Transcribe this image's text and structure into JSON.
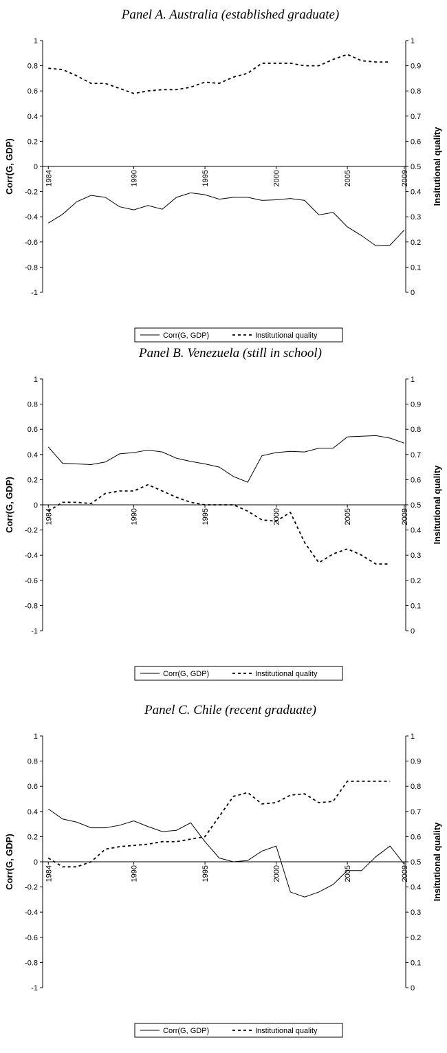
{
  "chart_data": [
    {
      "type": "line",
      "title": "Panel A. Australia (established graduate)",
      "y_label": "Corr(G, GDP)",
      "y2_label": "Insitutional quality",
      "x": [
        1984,
        1985,
        1986,
        1987,
        1988,
        1989,
        1990,
        1991,
        1992,
        1993,
        1994,
        1995,
        1996,
        1997,
        1998,
        1999,
        2000,
        2001,
        2002,
        2003,
        2004,
        2005,
        2006,
        2007,
        2008,
        2009
      ],
      "xlim": [
        1983.6,
        2009.1
      ],
      "xticks": [
        1984,
        1990,
        1995,
        2000,
        2005,
        2009
      ],
      "ylim": [
        -1,
        1
      ],
      "yticks": [
        -1,
        -0.8,
        -0.6,
        -0.4,
        -0.2,
        0,
        0.2,
        0.4,
        0.6,
        0.8,
        1
      ],
      "y2lim": [
        0,
        1
      ],
      "y2ticks": [
        0,
        0.1,
        0.2,
        0.3,
        0.4,
        0.5,
        0.6,
        0.7,
        0.8,
        0.9,
        1
      ],
      "series": [
        {
          "name": "Corr(G, GDP)",
          "color": "#000000",
          "dash": "solid",
          "values": [
            -0.45,
            -0.38,
            -0.28,
            -0.23,
            -0.245,
            -0.32,
            -0.345,
            -0.31,
            -0.34,
            -0.245,
            -0.21,
            -0.225,
            -0.26,
            -0.245,
            -0.245,
            -0.27,
            -0.265,
            -0.255,
            -0.27,
            -0.385,
            -0.365,
            -0.48,
            -0.55,
            -0.63,
            -0.625,
            -0.505
          ]
        },
        {
          "name": "Institutional quality",
          "color": "#000000",
          "dash": "dashed",
          "axis": "y2",
          "values": [
            0.89,
            0.885,
            0.86,
            0.83,
            0.83,
            0.81,
            0.79,
            0.8,
            0.805,
            0.805,
            0.815,
            0.835,
            0.83,
            0.855,
            0.87,
            0.91,
            0.91,
            0.91,
            0.9,
            0.9,
            0.925,
            0.945,
            0.92,
            0.915,
            0.915,
            null
          ]
        }
      ]
    },
    {
      "type": "line",
      "title": "Panel B. Venezuela (still in school)",
      "y_label": "Corr(G, GDP)",
      "y2_label": "Insitutional quality",
      "x": [
        1984,
        1985,
        1986,
        1987,
        1988,
        1989,
        1990,
        1991,
        1992,
        1993,
        1994,
        1995,
        1996,
        1997,
        1998,
        1999,
        2000,
        2001,
        2002,
        2003,
        2004,
        2005,
        2006,
        2007,
        2008,
        2009
      ],
      "xlim": [
        1983.6,
        2009.1
      ],
      "xticks": [
        1984,
        1990,
        1995,
        2000,
        2005,
        2009
      ],
      "ylim": [
        -1,
        1
      ],
      "yticks": [
        -1,
        -0.8,
        -0.6,
        -0.4,
        -0.2,
        0,
        0.2,
        0.4,
        0.6,
        0.8,
        1
      ],
      "y2lim": [
        0,
        1
      ],
      "y2ticks": [
        0,
        0.1,
        0.2,
        0.3,
        0.4,
        0.5,
        0.6,
        0.7,
        0.8,
        0.9,
        1
      ],
      "series": [
        {
          "name": "Corr(G, GDP)",
          "color": "#000000",
          "dash": "solid",
          "values": [
            0.46,
            0.33,
            0.325,
            0.32,
            0.34,
            0.405,
            0.415,
            0.435,
            0.42,
            0.37,
            0.345,
            0.325,
            0.3,
            0.225,
            0.18,
            0.39,
            0.415,
            0.425,
            0.42,
            0.45,
            0.45,
            0.54,
            0.545,
            0.55,
            0.53,
            0.49
          ]
        },
        {
          "name": "Institutional quality",
          "color": "#000000",
          "dash": "dashed",
          "axis": "y2",
          "values": [
            0.475,
            0.51,
            0.51,
            0.505,
            0.545,
            0.555,
            0.555,
            0.58,
            0.555,
            0.53,
            0.51,
            0.5,
            0.5,
            0.5,
            0.475,
            0.44,
            0.435,
            0.47,
            0.35,
            0.27,
            0.305,
            0.325,
            0.3,
            0.265,
            0.265,
            null
          ]
        }
      ]
    },
    {
      "type": "line",
      "title": "Panel C. Chile (recent graduate)",
      "y_label": "Corr(G, GDP)",
      "y2_label": "Insitutional quality",
      "x": [
        1984,
        1985,
        1986,
        1987,
        1988,
        1989,
        1990,
        1991,
        1992,
        1993,
        1994,
        1995,
        1996,
        1997,
        1998,
        1999,
        2000,
        2001,
        2002,
        2003,
        2004,
        2005,
        2006,
        2007,
        2008,
        2009
      ],
      "xlim": [
        1983.6,
        2009.1
      ],
      "xticks": [
        1984,
        1990,
        1995,
        2000,
        2005,
        2009
      ],
      "ylim": [
        -1,
        1
      ],
      "yticks": [
        -1,
        -0.8,
        -0.6,
        -0.4,
        -0.2,
        0,
        0.2,
        0.4,
        0.6,
        0.8,
        1
      ],
      "y2lim": [
        0,
        1
      ],
      "y2ticks": [
        0,
        0.1,
        0.2,
        0.3,
        0.4,
        0.5,
        0.6,
        0.7,
        0.8,
        0.9,
        1
      ],
      "series": [
        {
          "name": "Corr(G, GDP)",
          "color": "#000000",
          "dash": "solid",
          "values": [
            0.42,
            0.34,
            0.315,
            0.27,
            0.27,
            0.29,
            0.325,
            0.28,
            0.24,
            0.25,
            0.31,
            0.16,
            0.03,
            0.0,
            0.01,
            0.085,
            0.125,
            -0.24,
            -0.28,
            -0.24,
            -0.18,
            -0.07,
            -0.07,
            0.04,
            0.125,
            -0.02
          ]
        },
        {
          "name": "Institutional quality",
          "color": "#000000",
          "dash": "dashed",
          "axis": "y2",
          "values": [
            0.515,
            0.48,
            0.48,
            0.5,
            0.55,
            0.56,
            0.565,
            0.57,
            0.58,
            0.58,
            0.59,
            0.6,
            0.68,
            0.76,
            0.775,
            0.73,
            0.735,
            0.765,
            0.77,
            0.735,
            0.74,
            0.82,
            0.82,
            0.82,
            0.82,
            null
          ]
        }
      ]
    }
  ]
}
